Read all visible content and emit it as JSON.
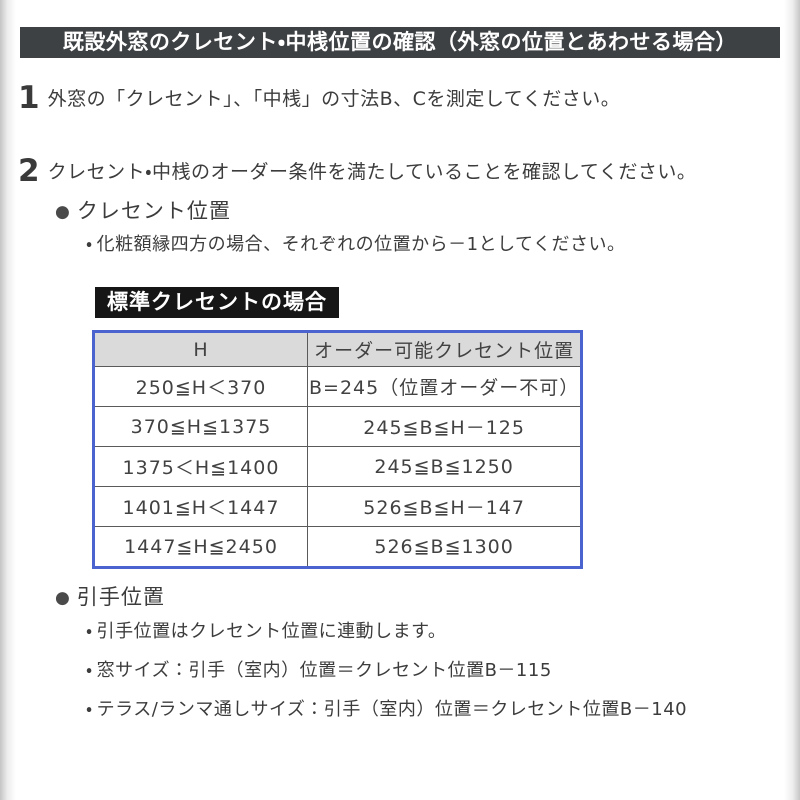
{
  "title_bar": "既設外窓のクレセント・中桟位置の確認（外窓の位置とあわせる場合）",
  "markers": {
    "bullet": "●",
    "dot": "・"
  },
  "steps": [
    {
      "number": "1",
      "text": "外窓の「クレセント」、「中桟」の寸法B、Cを測定してください。"
    },
    {
      "number": "2",
      "text": "クレセント・中桟のオーダー条件を満たしていることを確認してください。"
    }
  ],
  "crescent_section": {
    "heading": "クレセント位置",
    "note": "化粧額縁四方の場合、それぞれの位置から－1としてください。",
    "table_label": "標準クレセントの場合"
  },
  "table": {
    "headers": [
      "H",
      "オーダー可能クレセント位置"
    ],
    "rows": [
      [
        "250≦H＜370",
        "B=245（位置オーダー不可）"
      ],
      [
        "370≦H≦1375",
        "245≦B≦H－125"
      ],
      [
        "1375＜H≦1400",
        "245≦B≦1250"
      ],
      [
        "1401≦H＜1447",
        "526≦B≦H－147"
      ],
      [
        "1447≦H≦2450",
        "526≦B≦1300"
      ]
    ]
  },
  "handle_section": {
    "heading": "引手位置",
    "notes": [
      "引手位置はクレセント位置に連動します。",
      "窓サイズ：引手（室内）位置＝クレセント位置B－115",
      "テラス/ランマ通しサイズ：引手（室内）位置＝クレセント位置B－140"
    ]
  },
  "colors": {
    "title_bar_bg": "#3e4144",
    "table_label_bg": "#161616",
    "table_border": "#4a63cf",
    "table_header_bg": "#dadada",
    "body_text": "#3c3c3c"
  }
}
